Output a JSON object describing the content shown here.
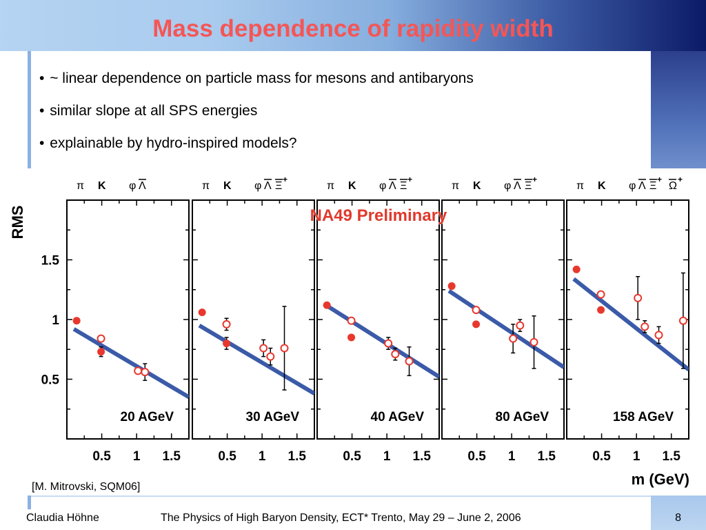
{
  "slide": {
    "title": "Mass dependence of rapidity width",
    "bullets": [
      "~ linear dependence on particle mass for mesons and antibaryons",
      "similar slope at all SPS energies",
      "explainable by hydro-inspired models?"
    ],
    "bullet_marker": "•",
    "citation": "[M. Mitrovski, SQM06]",
    "footer": {
      "author": "Claudia Höhne",
      "conference": "The Physics of High Baryon Density, ECT* Trento, May 29 – June 2, 2006",
      "page": "8"
    }
  },
  "colors": {
    "title": "#f45656",
    "marker": "#e8382e",
    "fit": "#3b5aa8",
    "watermark": "#e0392c"
  },
  "chart_data": {
    "type": "scatter",
    "ylabel": "RMS",
    "xlabel": "m (GeV)",
    "watermark": "NA49 Preliminary",
    "ylim": [
      0.0,
      2.0
    ],
    "xlim": [
      0.0,
      1.75
    ],
    "y_ticks": [
      "0.5",
      "1",
      "1.5"
    ],
    "x_ticks": [
      "0.5",
      "1",
      "1.5"
    ],
    "panels": [
      {
        "energy": "20 AGeV",
        "particle_labels": [
          "π",
          "K",
          "φ",
          "Λ"
        ],
        "fit": [
          [
            0.1,
            0.92
          ],
          [
            1.75,
            0.35
          ]
        ],
        "points": [
          {
            "x": 0.14,
            "y": 0.99,
            "style": "filled",
            "err": 0
          },
          {
            "x": 0.49,
            "y": 0.84,
            "style": "open",
            "err": 0
          },
          {
            "x": 0.49,
            "y": 0.73,
            "style": "filled",
            "err": 0.04
          },
          {
            "x": 1.02,
            "y": 0.57,
            "style": "open",
            "err": 0
          },
          {
            "x": 1.12,
            "y": 0.56,
            "style": "open",
            "err": 0.07
          }
        ]
      },
      {
        "energy": "30 AGeV",
        "particle_labels": [
          "π",
          "K",
          "φ",
          "Λ",
          "Ξ",
          "+"
        ],
        "fit": [
          [
            0.1,
            0.95
          ],
          [
            1.75,
            0.38
          ]
        ],
        "points": [
          {
            "x": 0.14,
            "y": 1.06,
            "style": "filled",
            "err": 0
          },
          {
            "x": 0.49,
            "y": 0.96,
            "style": "open",
            "err": 0.05
          },
          {
            "x": 0.49,
            "y": 0.8,
            "style": "filled",
            "err": 0.05
          },
          {
            "x": 1.02,
            "y": 0.76,
            "style": "open",
            "err": 0.07
          },
          {
            "x": 1.12,
            "y": 0.69,
            "style": "open",
            "err": 0.07
          },
          {
            "x": 1.32,
            "y": 0.76,
            "style": "open",
            "err": 0.35
          }
        ]
      },
      {
        "energy": "40 AGeV",
        "particle_labels": [
          "π",
          "K",
          "φ",
          "Λ",
          "Ξ",
          "+"
        ],
        "fit": [
          [
            0.1,
            1.13
          ],
          [
            1.75,
            0.52
          ]
        ],
        "points": [
          {
            "x": 0.14,
            "y": 1.12,
            "style": "filled",
            "err": 0
          },
          {
            "x": 0.49,
            "y": 0.99,
            "style": "open",
            "err": 0
          },
          {
            "x": 0.49,
            "y": 0.85,
            "style": "filled",
            "err": 0
          },
          {
            "x": 1.02,
            "y": 0.8,
            "style": "open",
            "err": 0.05
          },
          {
            "x": 1.12,
            "y": 0.71,
            "style": "open",
            "err": 0.05
          },
          {
            "x": 1.32,
            "y": 0.65,
            "style": "open",
            "err": 0.12
          }
        ]
      },
      {
        "energy": "80 AGeV",
        "particle_labels": [
          "π",
          "K",
          "φ",
          "Λ",
          "Ξ",
          "+"
        ],
        "fit": [
          [
            0.1,
            1.24
          ],
          [
            1.75,
            0.6
          ]
        ],
        "points": [
          {
            "x": 0.14,
            "y": 1.28,
            "style": "filled",
            "err": 0
          },
          {
            "x": 0.49,
            "y": 1.08,
            "style": "open",
            "err": 0
          },
          {
            "x": 0.49,
            "y": 0.96,
            "style": "filled",
            "err": 0
          },
          {
            "x": 1.02,
            "y": 0.84,
            "style": "open",
            "err": 0.12
          },
          {
            "x": 1.12,
            "y": 0.95,
            "style": "open",
            "err": 0.05
          },
          {
            "x": 1.32,
            "y": 0.81,
            "style": "open",
            "err": 0.22
          }
        ]
      },
      {
        "energy": "158 AGeV",
        "particle_labels": [
          "π",
          "K",
          "φ",
          "Λ",
          "Ξ",
          "+",
          "Ω",
          "+"
        ],
        "fit": [
          [
            0.1,
            1.34
          ],
          [
            1.75,
            0.58
          ]
        ],
        "points": [
          {
            "x": 0.14,
            "y": 1.42,
            "style": "filled",
            "err": 0
          },
          {
            "x": 0.49,
            "y": 1.21,
            "style": "open",
            "err": 0
          },
          {
            "x": 0.49,
            "y": 1.08,
            "style": "filled",
            "err": 0
          },
          {
            "x": 1.02,
            "y": 1.18,
            "style": "open",
            "err": 0.18
          },
          {
            "x": 1.12,
            "y": 0.94,
            "style": "open",
            "err": 0.05
          },
          {
            "x": 1.32,
            "y": 0.87,
            "style": "open",
            "err": 0.07
          },
          {
            "x": 1.67,
            "y": 0.99,
            "style": "open",
            "err": 0.4
          }
        ]
      }
    ]
  }
}
